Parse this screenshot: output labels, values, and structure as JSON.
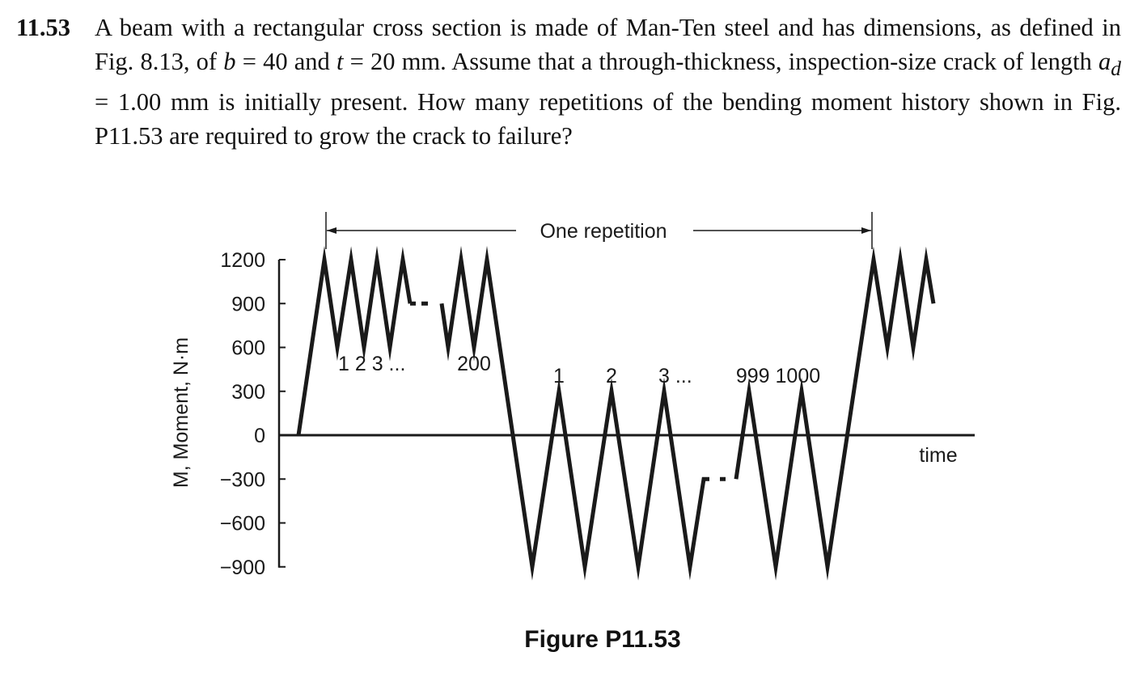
{
  "problem": {
    "number": "11.53",
    "text_parts": [
      "A beam with a rectangular cross section is made of Man-Ten steel and has dimensions, as defined in Fig. 8.13, of ",
      "b",
      " = 40 and ",
      "t",
      " = 20 mm. Assume that a through-thickness, inspection-size crack of length ",
      "a",
      "d",
      " = 1.00 mm is initially present. How many repetitions of the bending moment history shown in Fig. P11.53 are required to grow the crack to failure?"
    ]
  },
  "figure": {
    "caption": "Figure P11.53",
    "chart_data": {
      "type": "line",
      "ylabel": "M, Moment, N·m",
      "xlabel": "time",
      "yticks": [
        "1200",
        "900",
        "600",
        "300",
        "0",
        "−300",
        "−600",
        "−900"
      ],
      "ylim": [
        -900,
        1200
      ],
      "repetition_label": "One repetition",
      "blocks": [
        {
          "cycles": 200,
          "max": 1200,
          "min": 600,
          "labels": [
            "1 2 3 ...",
            "200"
          ]
        },
        {
          "cycles": 1000,
          "max": 300,
          "min": -900,
          "labels": [
            "1",
            "2",
            "3 ...",
            "999 1000"
          ]
        }
      ],
      "start_value": 0,
      "line_color": "#1a1a1a"
    }
  }
}
